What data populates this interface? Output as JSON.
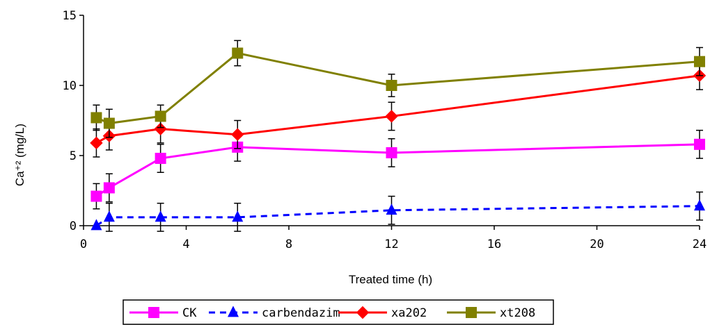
{
  "chart_data": {
    "type": "line",
    "title": "",
    "xlabel": "Treated time (h)",
    "ylabel": "Ca⁺² (mg/L)",
    "xlim": [
      0,
      24
    ],
    "ylim": [
      0,
      15
    ],
    "xticks": [
      "0",
      "4",
      "8",
      "12",
      "16",
      "20",
      "24"
    ],
    "yticks": [
      "0",
      "5",
      "10",
      "15"
    ],
    "grid": false,
    "legend_position": "bottom",
    "series": [
      {
        "name": "CK",
        "color": "#ff00ff",
        "marker": "square",
        "line_style": "solid",
        "x": [
          0.5,
          1,
          3,
          6,
          12,
          24
        ],
        "y": [
          2.1,
          2.7,
          4.8,
          5.6,
          5.2,
          5.8
        ],
        "error": [
          0.9,
          1.0,
          1.0,
          1.0,
          1.0,
          1.0
        ]
      },
      {
        "name": "carbendazim",
        "color": "#0000ff",
        "marker": "triangle",
        "line_style": "dashed",
        "x": [
          0.5,
          1,
          3,
          6,
          12,
          24
        ],
        "y": [
          0.0,
          0.6,
          0.6,
          0.6,
          1.1,
          1.4
        ],
        "error": [
          0.0,
          1.0,
          1.0,
          1.0,
          1.0,
          1.0
        ]
      },
      {
        "name": "xa202",
        "color": "#ff0000",
        "marker": "diamond",
        "line_style": "solid",
        "x": [
          0.5,
          1,
          3,
          6,
          12,
          24
        ],
        "y": [
          5.9,
          6.4,
          6.9,
          6.5,
          7.8,
          10.7
        ],
        "error": [
          1.0,
          1.0,
          1.0,
          1.0,
          1.0,
          1.0
        ]
      },
      {
        "name": "xt208",
        "color": "#808000",
        "marker": "square",
        "line_style": "solid",
        "x": [
          0.5,
          1,
          3,
          6,
          12,
          24
        ],
        "y": [
          7.7,
          7.3,
          7.8,
          12.3,
          10.0,
          11.7
        ],
        "error": [
          0.9,
          1.0,
          0.8,
          0.9,
          0.8,
          1.0
        ]
      }
    ]
  }
}
